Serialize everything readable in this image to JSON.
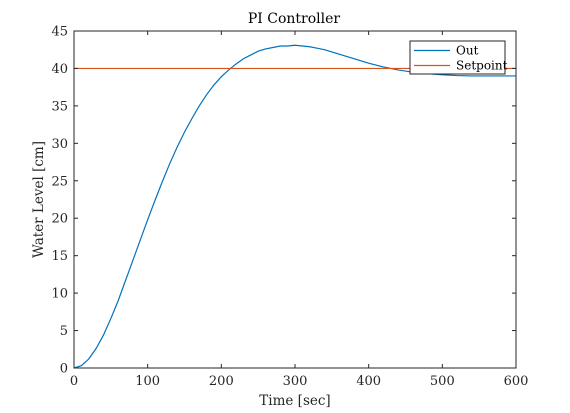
{
  "chart_data": {
    "type": "line",
    "title": "PI Controller",
    "xlabel": "Time [sec]",
    "ylabel": "Water Level [cm]",
    "xlim": [
      0,
      600
    ],
    "ylim": [
      0,
      45
    ],
    "xticks": [
      0,
      100,
      200,
      300,
      400,
      500,
      600
    ],
    "yticks": [
      0,
      5,
      10,
      15,
      20,
      25,
      30,
      35,
      40,
      45
    ],
    "grid": false,
    "legend_position": "top-right",
    "series": [
      {
        "name": "Out",
        "color": "#0072BD",
        "x": [
          0,
          10,
          20,
          30,
          40,
          50,
          60,
          70,
          80,
          90,
          100,
          110,
          120,
          130,
          140,
          150,
          160,
          170,
          180,
          190,
          200,
          210,
          220,
          230,
          240,
          250,
          260,
          270,
          280,
          290,
          300,
          310,
          320,
          330,
          340,
          350,
          360,
          370,
          380,
          390,
          400,
          420,
          440,
          460,
          480,
          500,
          520,
          540,
          560,
          580,
          600
        ],
        "y": [
          0,
          0.3,
          1.2,
          2.6,
          4.4,
          6.6,
          9.0,
          11.7,
          14.4,
          17.1,
          19.8,
          22.4,
          24.9,
          27.3,
          29.5,
          31.5,
          33.3,
          35.0,
          36.5,
          37.8,
          38.9,
          39.8,
          40.6,
          41.3,
          41.8,
          42.3,
          42.6,
          42.8,
          43.0,
          43.0,
          43.1,
          43.0,
          42.9,
          42.7,
          42.5,
          42.2,
          41.9,
          41.6,
          41.3,
          41.0,
          40.7,
          40.2,
          39.8,
          39.5,
          39.3,
          39.15,
          39.05,
          39.0,
          39.0,
          39.0,
          39.0
        ]
      },
      {
        "name": "Setpoint",
        "color": "#D95319",
        "x": [
          0,
          600
        ],
        "y": [
          40,
          40
        ]
      }
    ]
  }
}
